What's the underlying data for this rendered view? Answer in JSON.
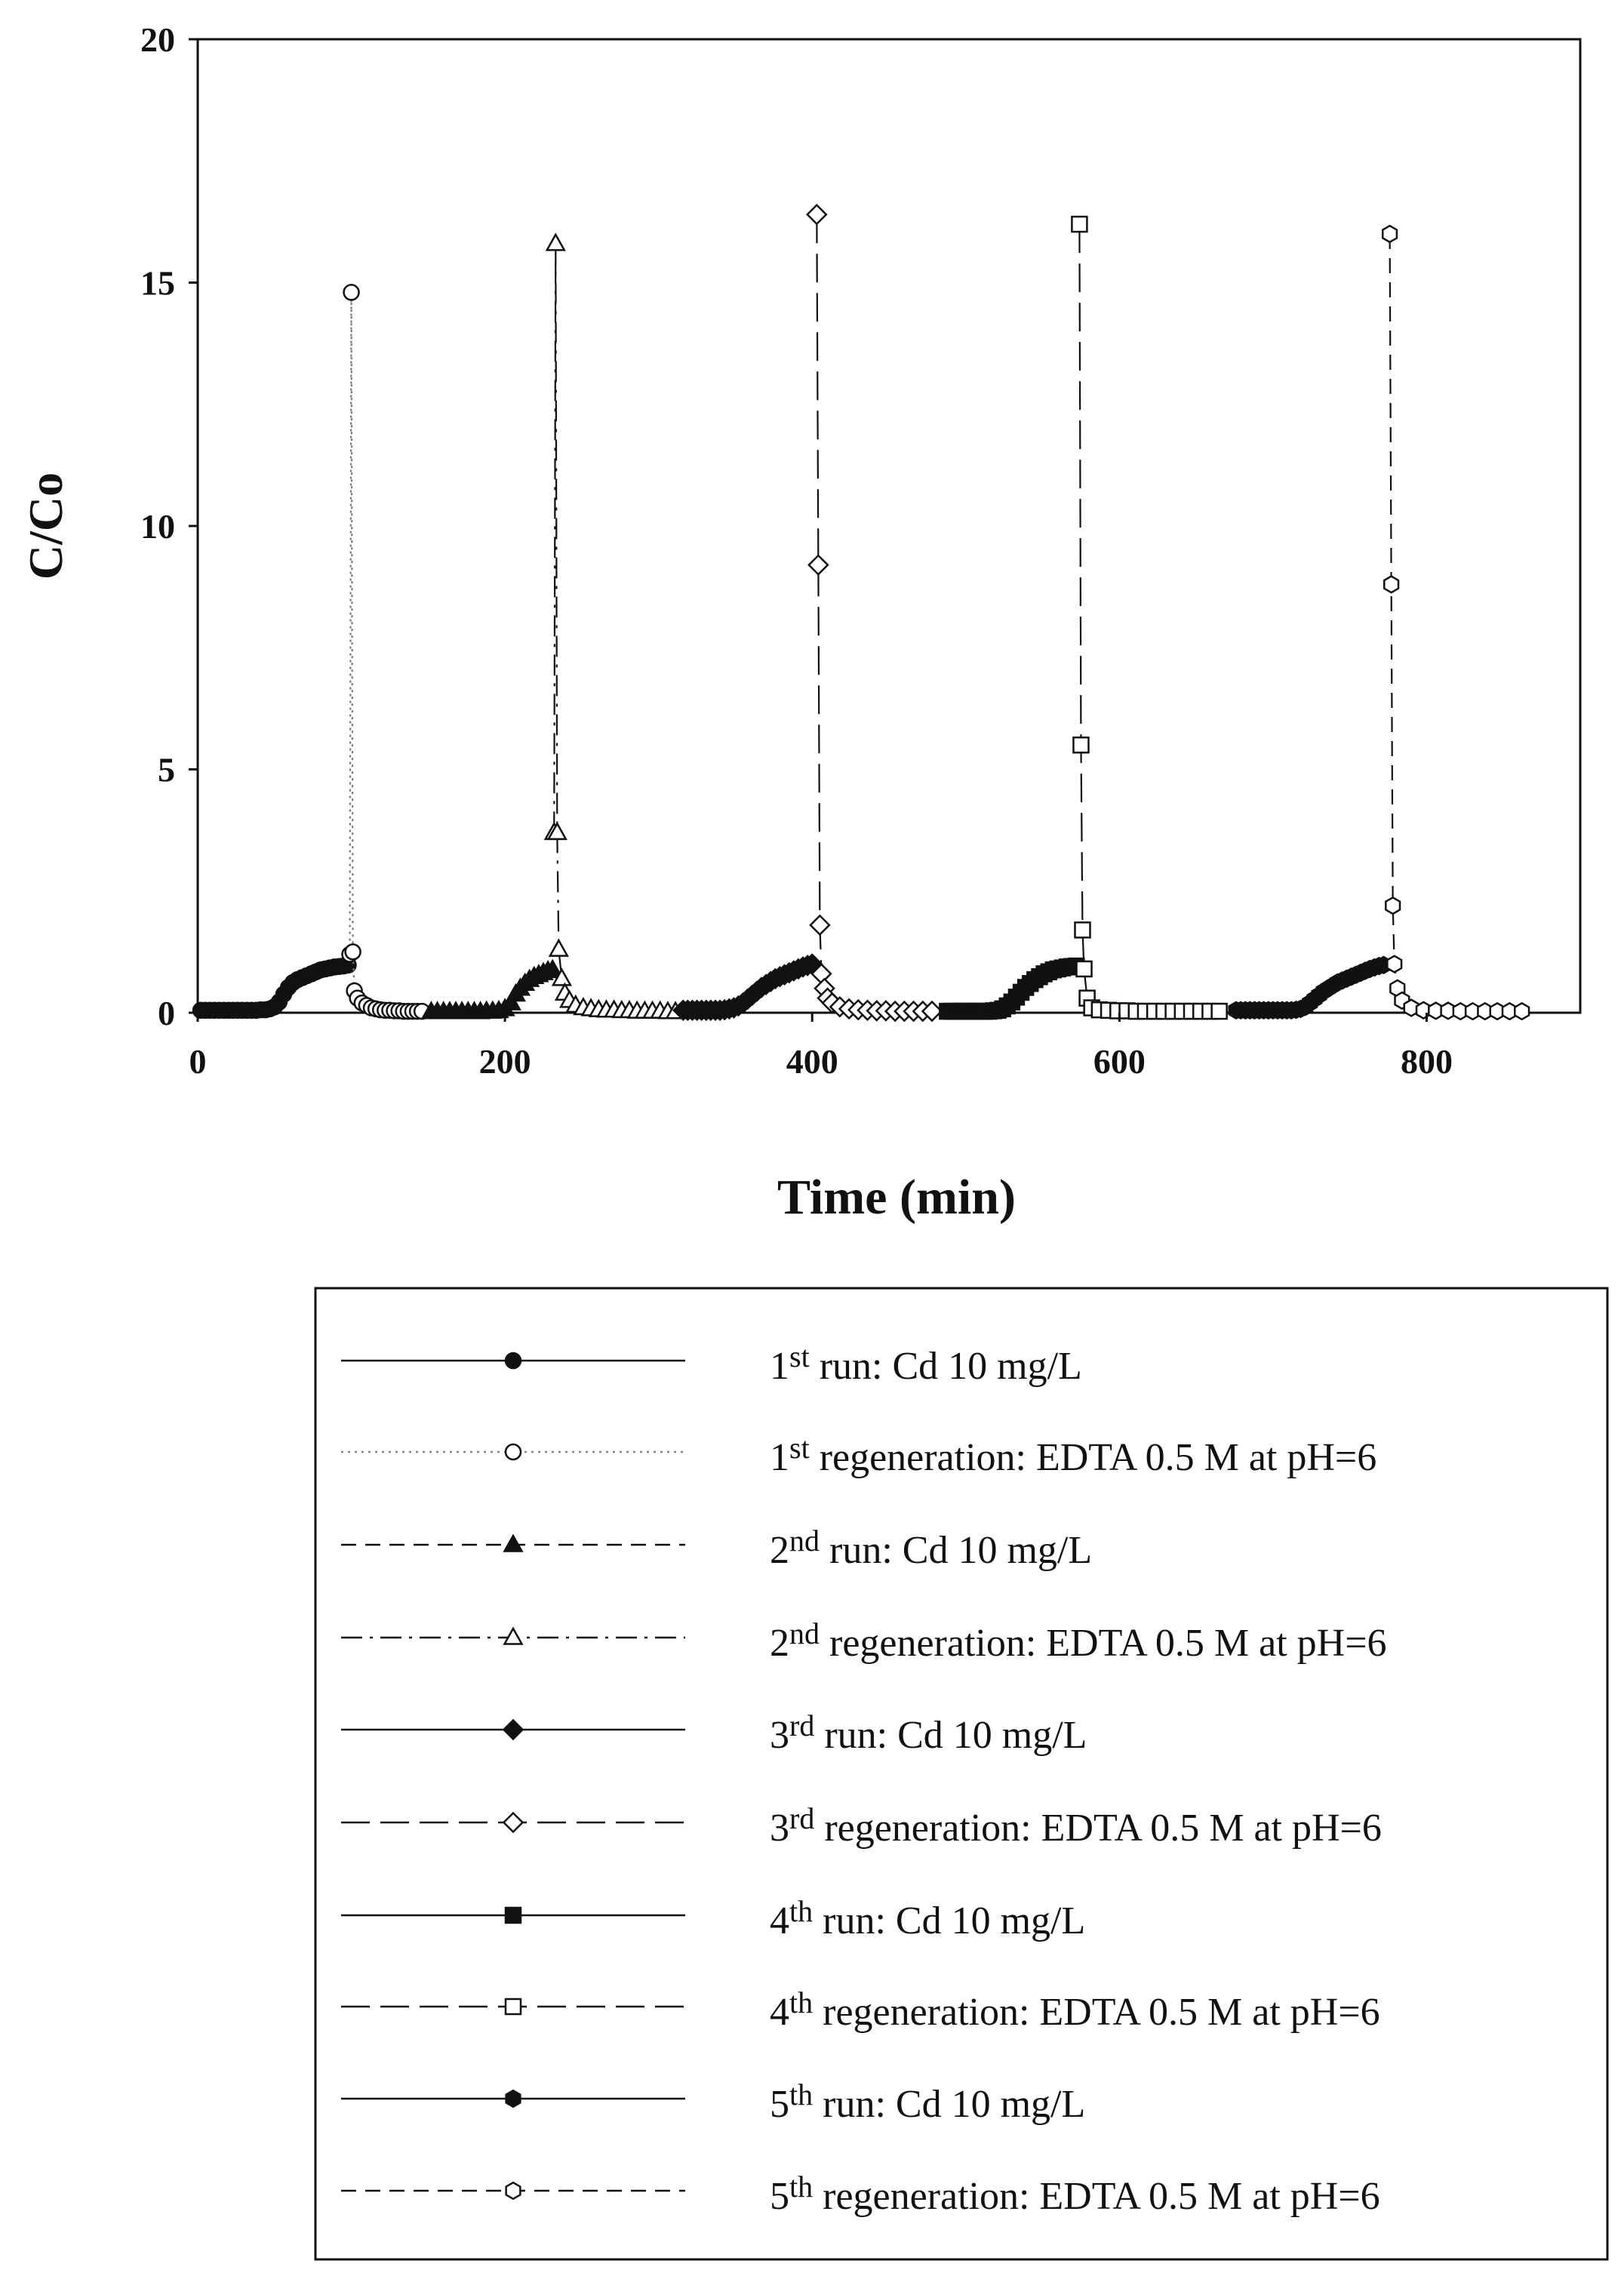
{
  "chart_data": {
    "type": "scatter",
    "xlabel": "Time (min)",
    "ylabel": "C/Co",
    "xlim": [
      0,
      900
    ],
    "ylim": [
      0,
      20
    ],
    "xticks": [
      0,
      200,
      400,
      600,
      800
    ],
    "yticks": [
      0,
      5,
      10,
      15,
      20
    ],
    "xtick_labels": [
      "0",
      "200",
      "400",
      "600",
      "800"
    ],
    "ytick_labels": [
      "0",
      "5",
      "10",
      "15",
      "20"
    ],
    "grid": false,
    "legend_position": "bottom",
    "series": [
      {
        "name": "1st run: Cd 10 mg/L",
        "ord": "1",
        "ord_sup": "st",
        "label_rest": " run: Cd 10 mg/L",
        "marker": "circle",
        "filled": true,
        "line": "solid",
        "x": [
          2,
          5,
          8,
          11,
          14,
          17,
          20,
          23,
          26,
          29,
          32,
          35,
          38,
          41,
          44,
          47,
          50,
          53,
          56,
          59,
          62,
          65,
          68,
          71,
          74,
          77,
          80,
          83,
          86,
          89,
          92,
          95,
          98
        ],
        "y": [
          0.05,
          0.05,
          0.05,
          0.05,
          0.05,
          0.05,
          0.05,
          0.05,
          0.05,
          0.05,
          0.05,
          0.05,
          0.05,
          0.06,
          0.06,
          0.08,
          0.12,
          0.22,
          0.38,
          0.52,
          0.62,
          0.68,
          0.72,
          0.76,
          0.8,
          0.84,
          0.88,
          0.9,
          0.92,
          0.94,
          0.95,
          0.96,
          0.98
        ]
      },
      {
        "name": "1st regeneration: EDTA 0.5 M at pH=6",
        "ord": "1",
        "ord_sup": "st",
        "label_rest": " regeneration: EDTA 0.5 M at pH=6",
        "marker": "circle",
        "filled": false,
        "line": "dotted",
        "x": [
          99,
          100,
          101,
          102,
          104,
          107,
          110,
          113,
          116,
          119,
          122,
          125,
          128,
          131,
          134,
          137,
          140,
          143,
          146
        ],
        "y": [
          1.2,
          14.8,
          1.25,
          0.45,
          0.3,
          0.2,
          0.15,
          0.1,
          0.08,
          0.06,
          0.05,
          0.05,
          0.04,
          0.04,
          0.03,
          0.03,
          0.03,
          0.03,
          0.03
        ]
      },
      {
        "name": "2nd run: Cd 10 mg/L",
        "ord": "2",
        "ord_sup": "nd",
        "label_rest": " run: Cd 10 mg/L",
        "marker": "triangle",
        "filled": true,
        "line": "dashed",
        "x": [
          152,
          156,
          160,
          164,
          168,
          172,
          176,
          180,
          184,
          188,
          192,
          196,
          200,
          204,
          207,
          210,
          213,
          216,
          219,
          222,
          225,
          228,
          231
        ],
        "y": [
          0.02,
          0.02,
          0.02,
          0.02,
          0.02,
          0.02,
          0.02,
          0.02,
          0.02,
          0.03,
          0.03,
          0.04,
          0.08,
          0.2,
          0.38,
          0.5,
          0.6,
          0.68,
          0.74,
          0.78,
          0.82,
          0.86,
          0.88
        ]
      },
      {
        "name": "2nd regeneration: EDTA 0.5 M at pH=6",
        "ord": "2",
        "ord_sup": "nd",
        "label_rest": " regeneration: EDTA 0.5 M at pH=6",
        "marker": "triangle",
        "filled": false,
        "line": "dashdot",
        "x": [
          232,
          233,
          234,
          235,
          237,
          239,
          242,
          246,
          251,
          256,
          261,
          266,
          271,
          276,
          281,
          286,
          291,
          296,
          301,
          306,
          311
        ],
        "y": [
          3.7,
          15.8,
          3.7,
          1.3,
          0.7,
          0.4,
          0.25,
          0.15,
          0.1,
          0.08,
          0.06,
          0.05,
          0.05,
          0.04,
          0.04,
          0.03,
          0.03,
          0.03,
          0.03,
          0.02,
          0.02
        ]
      },
      {
        "name": "3rd run: Cd 10 mg/L",
        "ord": "3",
        "ord_sup": "rd",
        "label_rest": " run: Cd 10 mg/L",
        "marker": "diamond",
        "filled": true,
        "line": "solid",
        "x": [
          316,
          319,
          322,
          325,
          328,
          331,
          334,
          337,
          340,
          343,
          346,
          349,
          352,
          355,
          358,
          361,
          364,
          367,
          370,
          373,
          376,
          379,
          382,
          385,
          388,
          391,
          394,
          397,
          400
        ],
        "y": [
          0.05,
          0.05,
          0.05,
          0.05,
          0.05,
          0.05,
          0.05,
          0.05,
          0.05,
          0.06,
          0.08,
          0.1,
          0.14,
          0.2,
          0.28,
          0.36,
          0.44,
          0.52,
          0.58,
          0.64,
          0.7,
          0.74,
          0.78,
          0.82,
          0.86,
          0.9,
          0.94,
          0.97,
          1.0
        ]
      },
      {
        "name": "3rd regeneration: EDTA 0.5 M at pH=6",
        "ord": "3",
        "ord_sup": "rd",
        "label_rest": " regeneration: EDTA 0.5 M at pH=6",
        "marker": "diamond",
        "filled": false,
        "line": "longdash",
        "x": [
          403,
          404,
          405,
          406,
          408,
          410,
          413,
          418,
          424,
          430,
          436,
          442,
          448,
          454,
          460,
          466,
          472,
          478
        ],
        "y": [
          16.4,
          9.2,
          1.8,
          0.8,
          0.5,
          0.3,
          0.2,
          0.12,
          0.08,
          0.06,
          0.05,
          0.04,
          0.04,
          0.03,
          0.03,
          0.03,
          0.03,
          0.03
        ]
      },
      {
        "name": "4th run: Cd 10 mg/L",
        "ord": "4",
        "ord_sup": "th",
        "label_rest": " run: Cd 10 mg/L",
        "marker": "square",
        "filled": true,
        "line": "solid",
        "x": [
          488,
          491,
          494,
          497,
          500,
          503,
          506,
          509,
          512,
          515,
          518,
          521,
          524,
          527,
          530,
          533,
          536,
          539,
          542,
          545,
          548,
          551,
          554,
          557,
          560,
          563,
          566,
          569,
          572
        ],
        "y": [
          0.03,
          0.03,
          0.03,
          0.03,
          0.03,
          0.03,
          0.03,
          0.03,
          0.03,
          0.03,
          0.04,
          0.05,
          0.08,
          0.14,
          0.22,
          0.32,
          0.42,
          0.52,
          0.6,
          0.68,
          0.74,
          0.8,
          0.84,
          0.88,
          0.9,
          0.92,
          0.94,
          0.95,
          0.96
        ]
      },
      {
        "name": "4th regeneration: EDTA 0.5 M at pH=6",
        "ord": "4",
        "ord_sup": "th",
        "label_rest": " regeneration: EDTA 0.5 M at pH=6",
        "marker": "square",
        "filled": false,
        "line": "longdash",
        "x": [
          574,
          575,
          576,
          577,
          579,
          582,
          587,
          593,
          599,
          605,
          611,
          617,
          623,
          629,
          635,
          641,
          647,
          653,
          659,
          665
        ],
        "y": [
          16.2,
          5.5,
          1.7,
          0.9,
          0.3,
          0.1,
          0.06,
          0.05,
          0.04,
          0.04,
          0.03,
          0.03,
          0.03,
          0.03,
          0.03,
          0.03,
          0.03,
          0.03,
          0.03,
          0.03
        ]
      },
      {
        "name": "5th run: Cd 10 mg/L",
        "ord": "5",
        "ord_sup": "th",
        "label_rest": " run: Cd 10 mg/L",
        "marker": "hexagon",
        "filled": true,
        "line": "solid",
        "x": [
          676,
          679,
          682,
          685,
          688,
          691,
          694,
          697,
          700,
          703,
          706,
          709,
          712,
          715,
          718,
          721,
          724,
          727,
          730,
          733,
          736,
          739,
          742,
          745,
          748,
          751,
          754,
          757,
          760,
          763,
          766,
          769,
          772
        ],
        "y": [
          0.05,
          0.05,
          0.05,
          0.05,
          0.05,
          0.05,
          0.05,
          0.05,
          0.05,
          0.05,
          0.05,
          0.05,
          0.05,
          0.06,
          0.08,
          0.12,
          0.2,
          0.28,
          0.36,
          0.44,
          0.5,
          0.56,
          0.62,
          0.66,
          0.7,
          0.74,
          0.78,
          0.82,
          0.86,
          0.9,
          0.93,
          0.96,
          0.98
        ]
      },
      {
        "name": "5th regeneration: EDTA 0.5 M at pH=6",
        "ord": "5",
        "ord_sup": "th",
        "label_rest": " regeneration: EDTA 0.5 M at pH=6",
        "marker": "hexagon",
        "filled": false,
        "line": "dashed",
        "x": [
          776,
          777,
          778,
          779,
          781,
          784,
          790,
          798,
          806,
          814,
          822,
          830,
          838,
          846,
          854,
          862
        ],
        "y": [
          16.0,
          8.8,
          2.2,
          1.0,
          0.5,
          0.25,
          0.1,
          0.05,
          0.04,
          0.04,
          0.03,
          0.03,
          0.03,
          0.03,
          0.03,
          0.03
        ]
      }
    ]
  }
}
